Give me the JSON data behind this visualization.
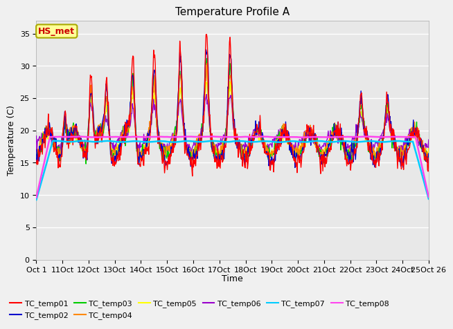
{
  "title": "Temperature Profile A",
  "xlabel": "Time",
  "ylabel": "Temperature (C)",
  "ylim": [
    0,
    37
  ],
  "yticks": [
    0,
    5,
    10,
    15,
    20,
    25,
    30,
    35
  ],
  "x_tick_labels": [
    "Oct 1",
    "11Oct",
    "12Oct",
    "13Oct",
    "14Oct",
    "15Oct",
    "16Oct",
    "17Oct",
    "18Oct",
    "19Oct",
    "20Oct",
    "21Oct",
    "22Oct",
    "23Oct",
    "24Oct",
    "25Oct 26"
  ],
  "annotation_text": "HS_met",
  "annotation_color": "#cc0000",
  "annotation_bg": "#ffff99",
  "series_colors": {
    "TC_temp01": "#ff0000",
    "TC_temp02": "#0000cc",
    "TC_temp03": "#00cc00",
    "TC_temp04": "#ff8800",
    "TC_temp05": "#ffff00",
    "TC_temp06": "#9900cc",
    "TC_temp07": "#00ccff",
    "TC_temp08": "#ff44ee"
  },
  "background_color": "#f0f0f0",
  "plot_bg": "#e8e8e8",
  "n_points": 720,
  "base_temp": 18.0,
  "spike_days": [
    1.1,
    2.1,
    2.7,
    3.7,
    4.5,
    5.5,
    6.5,
    7.4,
    8.5,
    9.5,
    10.5,
    11.5,
    12.4,
    13.4,
    14.3
  ],
  "spike_h_red": [
    7,
    14,
    10,
    14,
    12,
    13,
    15,
    14,
    0,
    0,
    0,
    0,
    6,
    6,
    0
  ],
  "spike_h_blue": [
    5,
    10,
    8,
    11,
    10,
    11,
    13,
    12,
    0,
    0,
    0,
    0,
    5,
    5,
    0
  ]
}
